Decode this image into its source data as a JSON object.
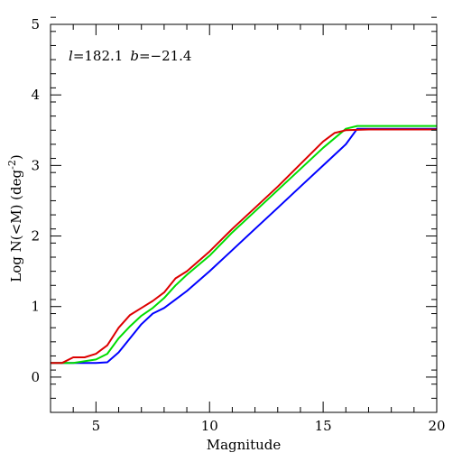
{
  "chart_data": {
    "type": "line",
    "title": "",
    "xlabel": "Magnitude",
    "ylabel": "Log N(<M) (deg",
    "ylabel_sup": "-2",
    "ylabel_close": ")",
    "xlim": [
      3,
      20
    ],
    "ylim": [
      -0.5,
      5
    ],
    "x_ticks": [
      5,
      10,
      15,
      20
    ],
    "y_ticks": [
      0,
      1,
      2,
      3,
      4,
      5
    ],
    "x_minor_step": 1,
    "y_minor_step": 0.2,
    "grid": false,
    "annotation": {
      "l_symbol": "l",
      "l_value": "=182.1",
      "b_symbol": "b",
      "b_value": "=−21.4"
    },
    "series": [
      {
        "color": "#0000ff",
        "x": [
          3,
          4,
          5,
          5.5,
          6,
          6.5,
          7,
          7.5,
          8,
          8.5,
          9,
          10,
          11,
          12,
          13,
          14,
          15,
          16,
          16.5,
          17,
          18,
          19,
          20
        ],
        "y": [
          0.2,
          0.2,
          0.2,
          0.21,
          0.35,
          0.55,
          0.75,
          0.9,
          0.98,
          1.1,
          1.22,
          1.5,
          1.8,
          2.1,
          2.4,
          2.7,
          3.0,
          3.3,
          3.52,
          3.52,
          3.52,
          3.52,
          3.52
        ]
      },
      {
        "color": "#00dd00",
        "x": [
          3,
          4,
          5,
          5.5,
          6,
          6.5,
          7,
          7.5,
          8,
          8.5,
          9,
          10,
          11,
          12,
          13,
          14,
          15,
          16,
          16.5,
          17,
          18,
          19,
          20
        ],
        "y": [
          0.2,
          0.2,
          0.25,
          0.33,
          0.55,
          0.72,
          0.87,
          0.98,
          1.12,
          1.3,
          1.45,
          1.72,
          2.05,
          2.35,
          2.65,
          2.95,
          3.25,
          3.52,
          3.56,
          3.56,
          3.56,
          3.56,
          3.56
        ]
      },
      {
        "color": "#dd0000",
        "x": [
          3,
          3.5,
          4,
          4.5,
          5,
          5.5,
          6,
          6.5,
          7,
          7.5,
          8,
          8.5,
          9,
          10,
          11,
          12,
          13,
          14,
          15,
          15.5,
          16,
          17,
          18,
          19,
          20
        ],
        "y": [
          0.2,
          0.2,
          0.28,
          0.28,
          0.33,
          0.45,
          0.7,
          0.88,
          0.98,
          1.08,
          1.2,
          1.4,
          1.5,
          1.78,
          2.1,
          2.4,
          2.7,
          3.02,
          3.34,
          3.46,
          3.5,
          3.51,
          3.51,
          3.51,
          3.51
        ]
      }
    ]
  }
}
